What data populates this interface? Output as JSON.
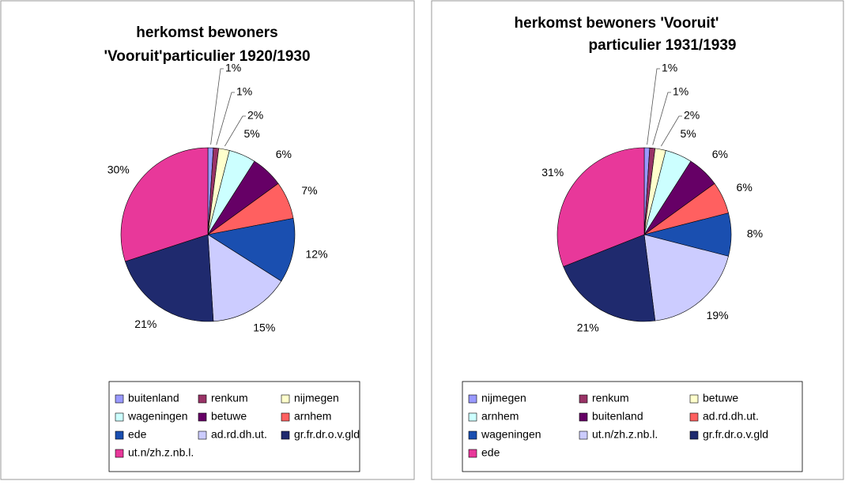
{
  "chart_data": [
    {
      "type": "pie",
      "title": [
        "herkomst bewoners",
        "'Vooruit'particulier 1920/1930"
      ],
      "categories": [
        "buitenland",
        "renkum",
        "nijmegen",
        "wageningen",
        "betuwe",
        "arnhem",
        "ede",
        "ad.rd.dh.ut.",
        "gr.fr.dr.o.v.gld",
        "ut.n/zh.z.nb.l."
      ],
      "values": [
        1,
        1,
        2,
        5,
        6,
        7,
        12,
        15,
        21,
        30
      ],
      "value_labels": [
        "1%",
        "1%",
        "2%",
        "5%",
        "6%",
        "7%",
        "12%",
        "15%",
        "21%",
        "30%"
      ],
      "colors": [
        "#9999ff",
        "#993366",
        "#ffffcc",
        "#ccffff",
        "#660066",
        "#ff6060",
        "#1a4fb0",
        "#ccccff",
        "#1f2a6e",
        "#e8389a"
      ]
    },
    {
      "type": "pie",
      "title": [
        "herkomst bewoners 'Vooruit'",
        "particulier 1931/1939"
      ],
      "categories": [
        "nijmegen",
        "renkum",
        "betuwe",
        "arnhem",
        "buitenland",
        "ad.rd.dh.ut.",
        "wageningen",
        "ut.n/zh.z.nb.l.",
        "gr.fr.dr.o.v.gld",
        "ede"
      ],
      "values": [
        1,
        1,
        2,
        5,
        6,
        6,
        8,
        19,
        21,
        31
      ],
      "value_labels": [
        "1%",
        "1%",
        "2%",
        "5%",
        "6%",
        "6%",
        "8%",
        "19%",
        "21%",
        "31%"
      ],
      "colors": [
        "#9999ff",
        "#993366",
        "#ffffcc",
        "#ccffff",
        "#660066",
        "#ff6060",
        "#1a4fb0",
        "#ccccff",
        "#1f2a6e",
        "#e8389a"
      ]
    }
  ]
}
